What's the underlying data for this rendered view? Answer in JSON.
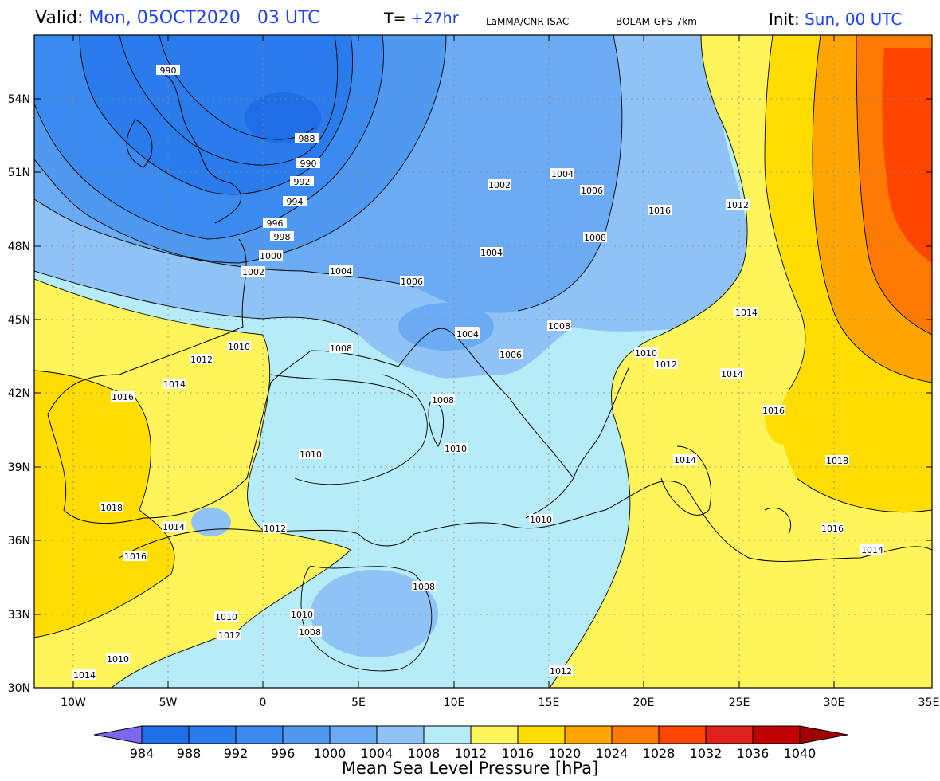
{
  "header": {
    "valid_label": "Valid:",
    "valid_value": "Mon, 05OCT2020   03 UTC",
    "t_label": "T=",
    "t_value": "+27hr",
    "source": "LaMMA/CNR-ISAC",
    "model": "BOLAM-GFS-7km",
    "init_label": "Init:",
    "init_value": "Sun, 00 UTC"
  },
  "axes": {
    "lat_ticks": [
      "54N",
      "51N",
      "48N",
      "45N",
      "42N",
      "39N",
      "36N",
      "33N",
      "30N"
    ],
    "lon_ticks": [
      "10W",
      "5W",
      "0",
      "5E",
      "10E",
      "15E",
      "20E",
      "25E",
      "30E",
      "35E"
    ]
  },
  "isobar_labels": [
    "990",
    "988",
    "990",
    "992",
    "994",
    "996",
    "998",
    "1000",
    "1002",
    "1004",
    "1002",
    "1004",
    "1006",
    "1006",
    "1004",
    "1008",
    "1016",
    "1012",
    "1004",
    "1006",
    "1004",
    "1008",
    "1014",
    "1008",
    "1010",
    "1012",
    "1010",
    "1006",
    "1010",
    "1012",
    "1014",
    "1014",
    "1016",
    "1008",
    "1016",
    "1010",
    "1010",
    "1014",
    "1018",
    "1018",
    "1014",
    "1012",
    "1010",
    "1016",
    "1016",
    "1014",
    "1008",
    "1010",
    "1012",
    "1008",
    "1010",
    "1012",
    "1014",
    "1012"
  ],
  "colorbar": {
    "title": "Mean Sea Level Pressure [hPa]",
    "labels": [
      "984",
      "988",
      "992",
      "996",
      "1000",
      "1004",
      "1008",
      "1012",
      "1016",
      "1020",
      "1024",
      "1028",
      "1032",
      "1036",
      "1040"
    ],
    "colors": [
      "#7b68ee",
      "#1e6ee8",
      "#2a7bec",
      "#3a8aef",
      "#4f9af0",
      "#6aabf3",
      "#90c3f5",
      "#b6ebf8",
      "#fff55a",
      "#ffdd00",
      "#ffa500",
      "#ff7a00",
      "#ff4500",
      "#e0201a",
      "#c00000",
      "#a00000"
    ]
  }
}
